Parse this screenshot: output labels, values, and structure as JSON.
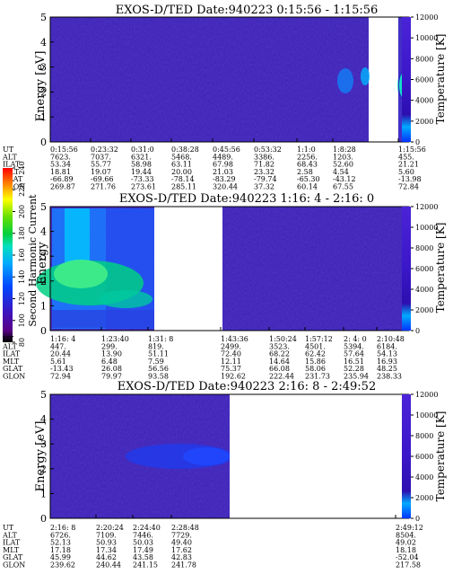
{
  "chart_data": [
    {
      "type": "heatmap",
      "title": "EXOS-D/TED   Date:940223  0:15:56 - 1:15:56",
      "ylabel": "Energy [eV]",
      "ylim": [
        0,
        5
      ],
      "yticks": [
        "0",
        "1",
        "2",
        "3",
        "4",
        "5"
      ],
      "colorbar_label": "Temperature [K]",
      "colorbar_range": [
        0,
        12000
      ],
      "colorbar_ticks": [
        "0",
        "2000",
        "4000",
        "6000",
        "8000",
        "10000",
        "12000"
      ],
      "background_color": "#3a1fb4",
      "data_gaps": [
        "after 1:8:28 until end of window"
      ],
      "features": [
        "cyan/green enhancement near 2-3 eV at 1:1:0 and near 1:15:56"
      ],
      "time_table": {
        "rows": [
          {
            "label": "UT",
            "values": [
              "0:15:56",
              "0:23:32",
              "0:31:0",
              "0:38:28",
              "0:45:56",
              "0:53:32",
              "1:1:0",
              "1:8:28",
              "1:15:56"
            ]
          },
          {
            "label": "ALT",
            "values": [
              "7623.",
              "7037.",
              "6321.",
              "5468.",
              "4489.",
              "3386.",
              "2256.",
              "1203.",
              "455."
            ]
          },
          {
            "label": "ILAT",
            "values": [
              "53.34",
              "55.77",
              "58.98",
              "63.11",
              "67.98",
              "71.82",
              "68.43",
              "52.60",
              "21.21"
            ]
          },
          {
            "label": "MLT",
            "values": [
              "18.81",
              "19.07",
              "19.44",
              "20.00",
              "21.03",
              "23.32",
              "2.58",
              "4.54",
              "5.60"
            ]
          },
          {
            "label": "GLAT",
            "values": [
              "-66.89",
              "-69.66",
              "-73.33",
              "-78.14",
              "-83.29",
              "-79.74",
              "-65.30",
              "-43.12",
              "-13.98"
            ]
          },
          {
            "label": "GLON",
            "values": [
              "269.87",
              "271.76",
              "273.61",
              "285.11",
              "320.44",
              "37.32",
              "60.14",
              "67.55",
              "72.84"
            ]
          }
        ]
      }
    },
    {
      "type": "heatmap",
      "title": "EXOS-D/TED   Date:940223  1:16: 4 - 2:16: 0",
      "ylabel": "Energy",
      "ylim": [
        0,
        5
      ],
      "yticks": [
        "0",
        "1",
        "2",
        "3",
        "4",
        "5"
      ],
      "colorbar_label": "Temperature [K]",
      "colorbar_range": [
        0,
        12000
      ],
      "colorbar_ticks": [
        "0",
        "2000",
        "4000",
        "6000",
        "8000",
        "10000",
        "12000"
      ],
      "left_colorbar_label": "Second Harmonic Current",
      "left_colorbar_range": [
        80,
        240
      ],
      "left_colorbar_ticks": [
        "80",
        "100",
        "120",
        "140",
        "160",
        "180",
        "200",
        "220",
        "240"
      ],
      "data_gaps": [
        "1:31:8 - 1:43:36"
      ],
      "features": [
        "green/cyan enhancement from 1:16:4 to 1:31:8, strongest near 1-3 eV"
      ],
      "time_table": {
        "rows": [
          {
            "label": "UT",
            "values": [
              "1:16: 4",
              "1:23:40",
              "1:31: 8",
              "1:43:36",
              "1:50:24",
              "1:57:12",
              "2: 4: 0",
              "2:10:48"
            ]
          },
          {
            "label": "ALT",
            "values": [
              "447.",
              "299.",
              "819.",
              "2499.",
              "3523.",
              "4501.",
              "5394.",
              "6184."
            ]
          },
          {
            "label": "ILAT",
            "values": [
              "20.44",
              "13.90",
              "51.11",
              "72.40",
              "68.22",
              "62.42",
              "57.64",
              "54.13"
            ]
          },
          {
            "label": "MLT",
            "values": [
              "5.61",
              "6.48",
              "7.59",
              "12.11",
              "14.64",
              "15.86",
              "16.51",
              "16.93"
            ]
          },
          {
            "label": "GLAT",
            "values": [
              "-13.43",
              "26.08",
              "56.56",
              "75.37",
              "66.08",
              "58.06",
              "52.28",
              "48.25"
            ]
          },
          {
            "label": "GLON",
            "values": [
              "72.94",
              "79.97",
              "93.58",
              "192.62",
              "222.44",
              "231.73",
              "235.94",
              "238.33"
            ]
          }
        ]
      }
    },
    {
      "type": "heatmap",
      "title": "EXOS-D/TED   Date:940223  2:16: 8 - 2:49:52",
      "ylabel": "Energy [eV]",
      "ylim": [
        0,
        5
      ],
      "yticks": [
        "0",
        "1",
        "2",
        "3",
        "4",
        "5"
      ],
      "colorbar_label": "Temperature [K]",
      "colorbar_range": [
        0,
        12000
      ],
      "colorbar_ticks": [
        "0",
        "2000",
        "4000",
        "6000",
        "8000",
        "10000",
        "12000"
      ],
      "data_gaps": [
        "after 2:28:48 until 2:49:12"
      ],
      "features": [
        "brighter blue band near 2-3 eV from 2:20:24 to 2:28:48"
      ],
      "time_table": {
        "rows": [
          {
            "label": "UT",
            "values": [
              "2:16: 8",
              "2:20:24",
              "2:24:40",
              "2:28:48",
              "2:49:12"
            ]
          },
          {
            "label": "ALT",
            "values": [
              "6726.",
              "7109.",
              "7446.",
              "7729.",
              "8504."
            ]
          },
          {
            "label": "ILAT",
            "values": [
              "52.13",
              "50.93",
              "50.03",
              "49.40",
              "49.02"
            ]
          },
          {
            "label": "MLT",
            "values": [
              "17.18",
              "17.34",
              "17.49",
              "17.62",
              "18.18"
            ]
          },
          {
            "label": "GLAT",
            "values": [
              "45.99",
              "44.62",
              "43.58",
              "42.83",
              "-52.04"
            ]
          },
          {
            "label": "GLON",
            "values": [
              "239.62",
              "240.44",
              "241.15",
              "241.78",
              "217.58"
            ]
          }
        ]
      }
    }
  ]
}
